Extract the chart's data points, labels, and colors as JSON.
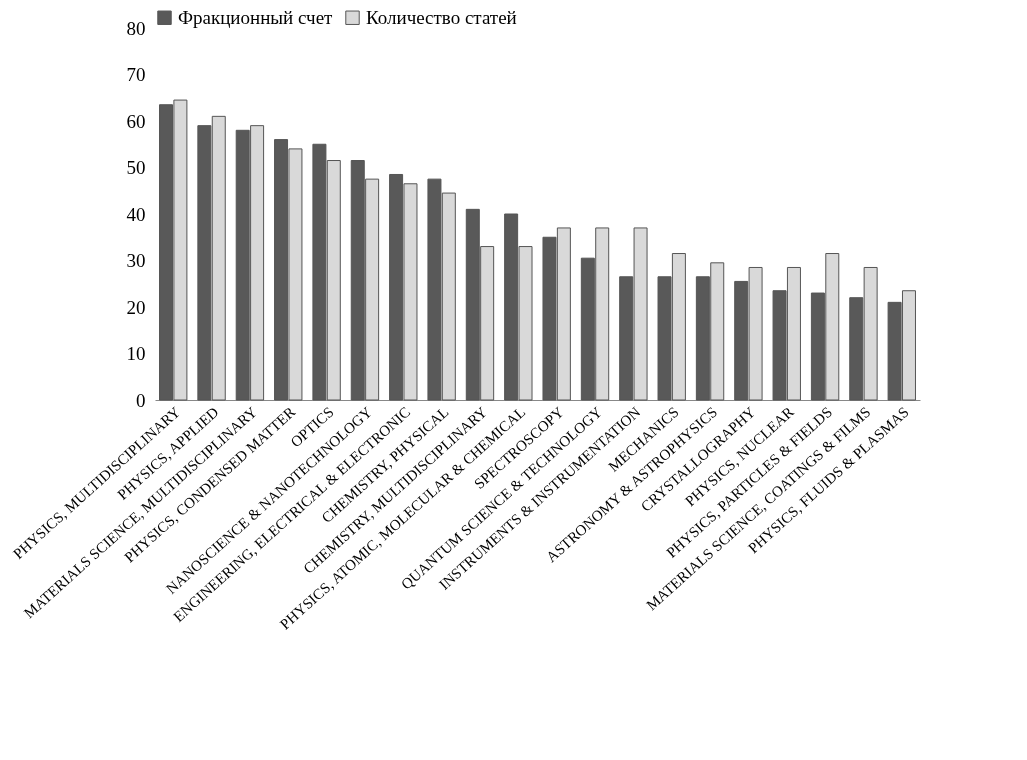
{
  "chart_data": {
    "type": "bar",
    "categories": [
      "PHYSICS, MULTIDISCIPLINARY",
      "PHYSICS, APPLIED",
      "MATERIALS SCIENCE, MULTIDISCIPLINARY",
      "PHYSICS, CONDENSED MATTER",
      "OPTICS",
      "NANOSCIENCE & NANOTECHNOLOGY",
      "ENGINEERING, ELECTRICAL & ELECTRONIC",
      "CHEMISTRY, PHYSICAL",
      "CHEMISTRY, MULTIDISCIPLINARY",
      "PHYSICS, ATOMIC, MOLECULAR & CHEMICAL",
      "SPECTROSCOPY",
      "QUANTUM SCIENCE & TECHNOLOGY",
      "INSTRUMENTS & INSTRUMENTATION",
      "MECHANICS",
      "ASTRONOMY & ASTROPHYSICS",
      "CRYSTALLOGRAPHY",
      "PHYSICS, NUCLEAR",
      "PHYSICS, PARTICLES & FIELDS",
      "MATERIALS SCIENCE, COATINGS & FILMS",
      "PHYSICS, FLUIDS & PLASMAS"
    ],
    "series": [
      {
        "name": "Фракционный счет",
        "color": "#595959",
        "values": [
          63.5,
          59,
          58,
          56,
          55,
          51.5,
          48.5,
          47.5,
          41,
          40,
          35,
          30.5,
          26.5,
          26.5,
          26.5,
          25.5,
          23.5,
          23,
          22,
          21
        ]
      },
      {
        "name": "Количество статей",
        "color": "#d9d9d9",
        "values": [
          64.5,
          61,
          59,
          54,
          51.5,
          47.5,
          46.5,
          44.5,
          33,
          33,
          37,
          37,
          37,
          31.5,
          29.5,
          28.5,
          28.5,
          31.5,
          28.5,
          23.5
        ]
      }
    ],
    "ylim": [
      0,
      80
    ],
    "yticks": [
      0,
      10,
      20,
      30,
      40,
      50,
      60,
      70,
      80
    ],
    "grid": false,
    "legend": "top"
  }
}
